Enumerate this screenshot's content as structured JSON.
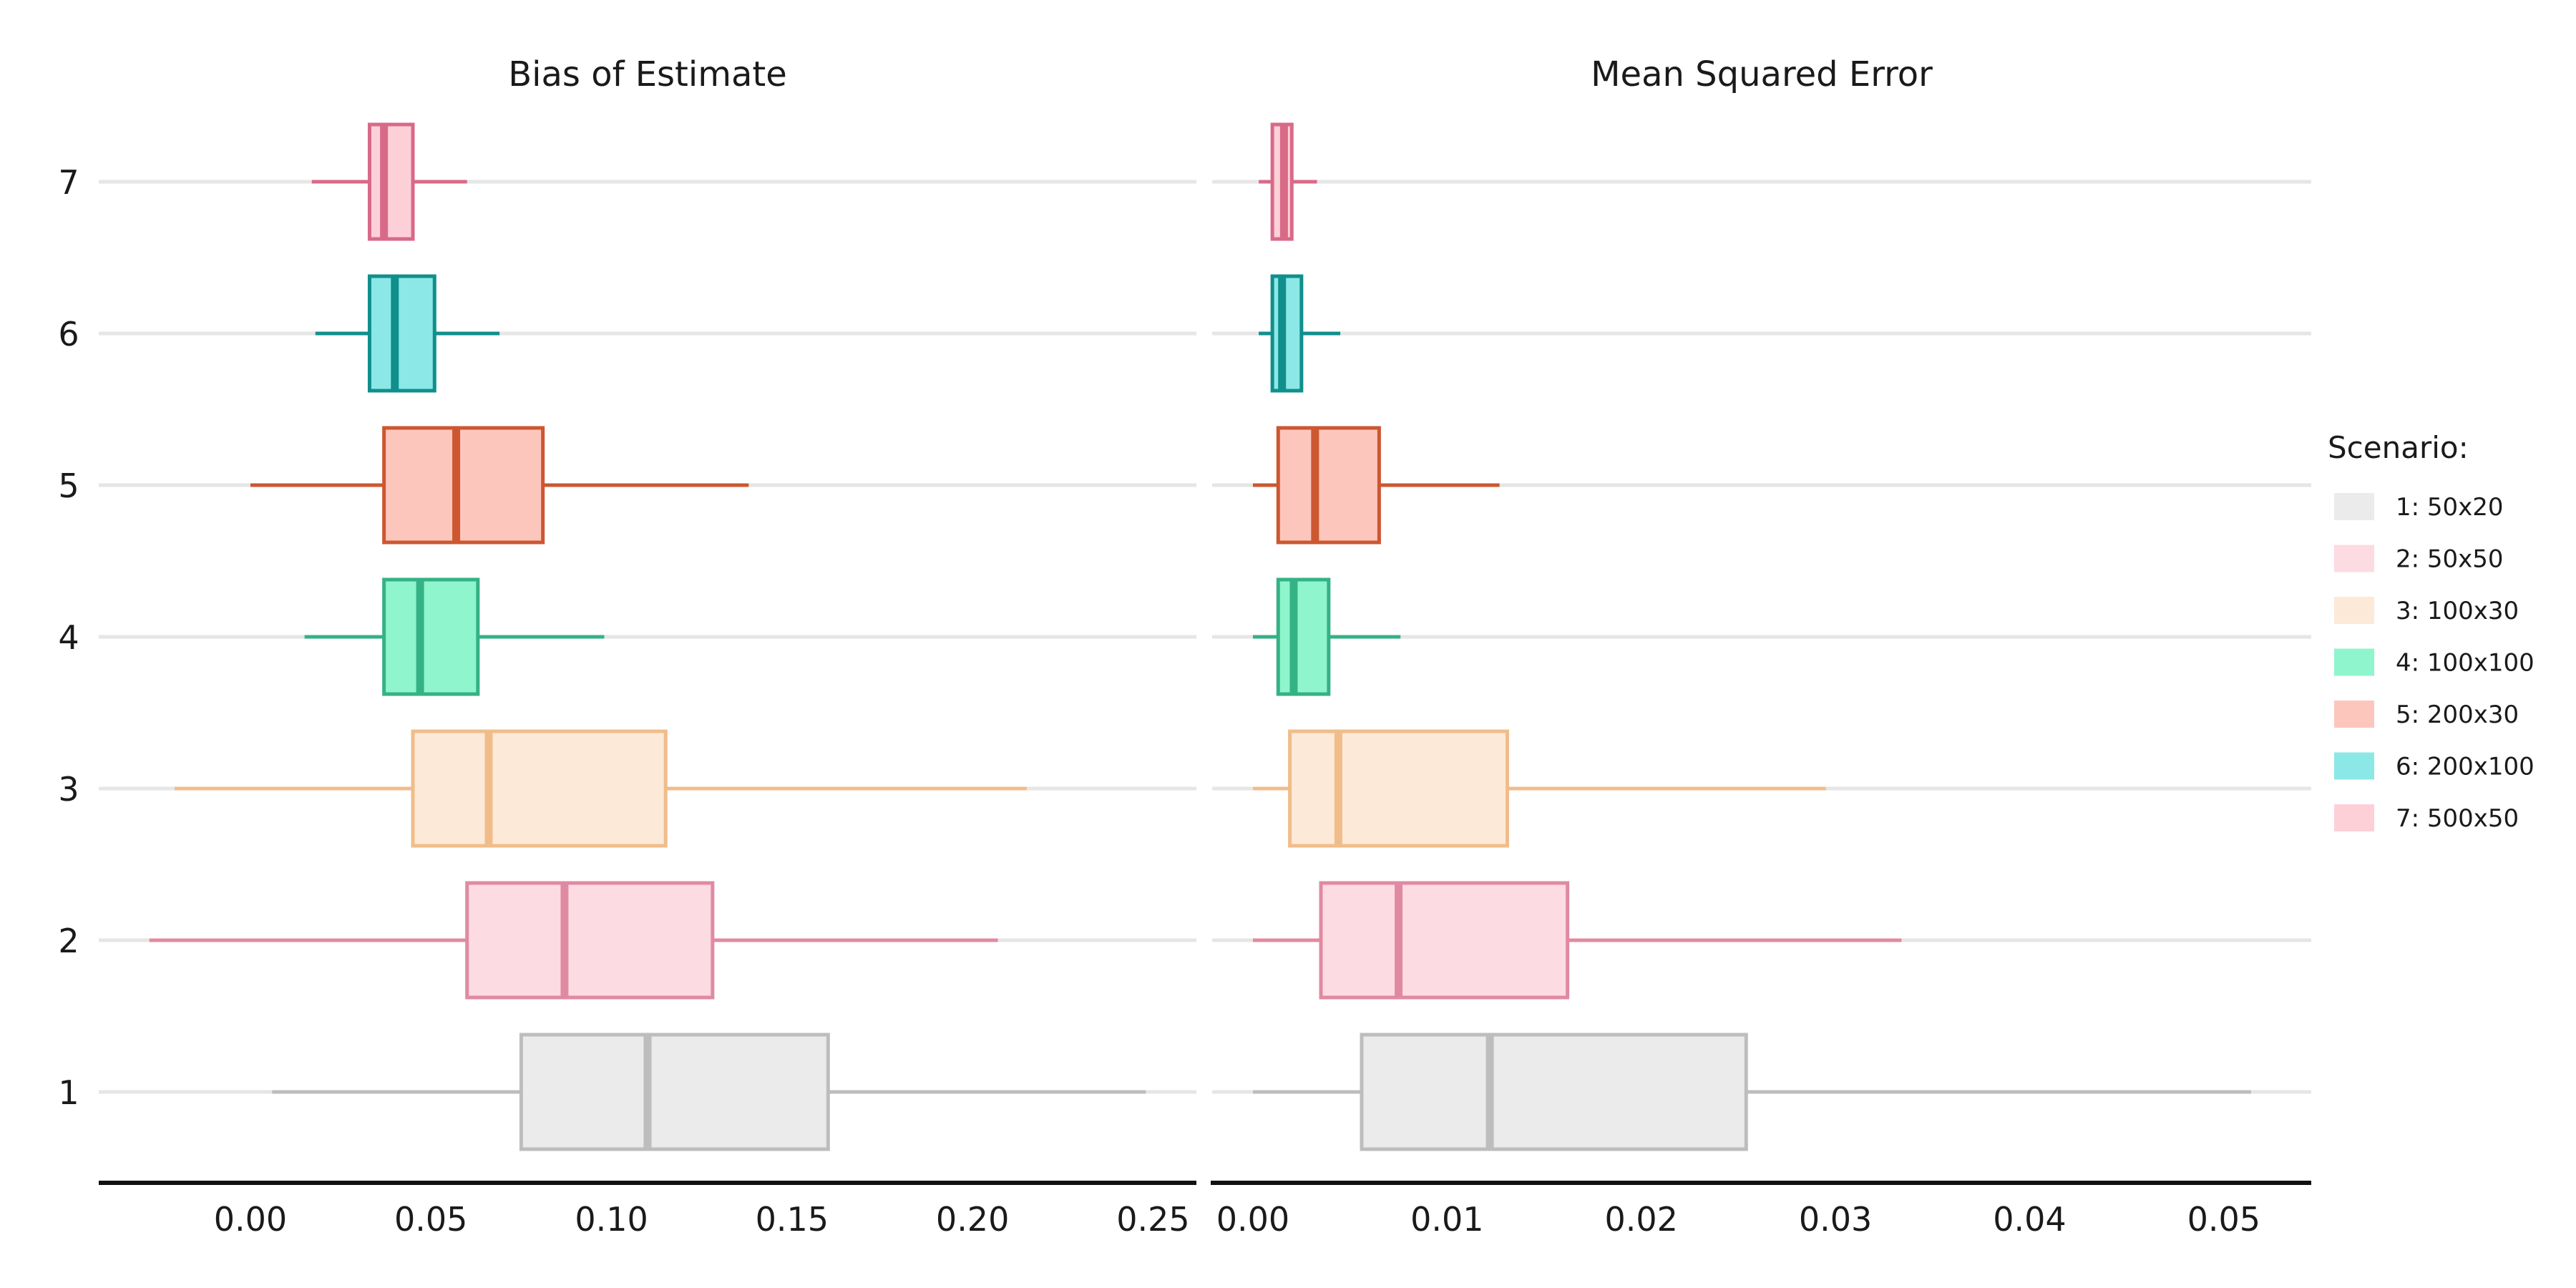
{
  "chart_data": [
    {
      "type": "boxplot",
      "orientation": "horizontal",
      "title": "Bias of Estimate",
      "xlabel": "",
      "ylabel": "",
      "xlim": [
        -0.042,
        0.262
      ],
      "x_ticks": [
        0.0,
        0.05,
        0.1,
        0.15,
        0.2,
        0.25
      ],
      "x_tick_labels": [
        "0.00",
        "0.05",
        "0.10",
        "0.15",
        "0.20",
        "0.25"
      ],
      "categories": [
        "1",
        "2",
        "3",
        "4",
        "5",
        "6",
        "7"
      ],
      "series": [
        {
          "scenario": "1",
          "name": "1: 50x20",
          "whisker_low": 0.006,
          "q1": 0.075,
          "median": 0.11,
          "q3": 0.16,
          "whisker_high": 0.248
        },
        {
          "scenario": "2",
          "name": "2: 50x50",
          "whisker_low": -0.028,
          "q1": 0.06,
          "median": 0.087,
          "q3": 0.128,
          "whisker_high": 0.207
        },
        {
          "scenario": "3",
          "name": "3: 100x30",
          "whisker_low": -0.021,
          "q1": 0.045,
          "median": 0.066,
          "q3": 0.115,
          "whisker_high": 0.215
        },
        {
          "scenario": "4",
          "name": "4: 100x100",
          "whisker_low": 0.015,
          "q1": 0.037,
          "median": 0.047,
          "q3": 0.063,
          "whisker_high": 0.098
        },
        {
          "scenario": "5",
          "name": "5: 200x30",
          "whisker_low": 0.0,
          "q1": 0.037,
          "median": 0.057,
          "q3": 0.081,
          "whisker_high": 0.138
        },
        {
          "scenario": "6",
          "name": "6: 200x100",
          "whisker_low": 0.018,
          "q1": 0.033,
          "median": 0.04,
          "q3": 0.051,
          "whisker_high": 0.069
        },
        {
          "scenario": "7",
          "name": "7: 500x50",
          "whisker_low": 0.017,
          "q1": 0.033,
          "median": 0.037,
          "q3": 0.045,
          "whisker_high": 0.06
        }
      ]
    },
    {
      "type": "boxplot",
      "orientation": "horizontal",
      "title": "Mean Squared Error",
      "xlabel": "",
      "ylabel": "",
      "xlim": [
        -0.0021,
        0.0545
      ],
      "x_ticks": [
        0.0,
        0.01,
        0.02,
        0.03,
        0.04,
        0.05
      ],
      "x_tick_labels": [
        "0.00",
        "0.01",
        "0.02",
        "0.03",
        "0.04",
        "0.05"
      ],
      "categories": [
        "1",
        "2",
        "3",
        "4",
        "5",
        "6",
        "7"
      ],
      "series": [
        {
          "scenario": "1",
          "name": "1: 50x20",
          "whisker_low": 0.0,
          "q1": 0.0056,
          "median": 0.0122,
          "q3": 0.0254,
          "whisker_high": 0.0514
        },
        {
          "scenario": "2",
          "name": "2: 50x50",
          "whisker_low": 0.0,
          "q1": 0.0035,
          "median": 0.0075,
          "q3": 0.0162,
          "whisker_high": 0.0334
        },
        {
          "scenario": "3",
          "name": "3: 100x30",
          "whisker_low": 0.0,
          "q1": 0.0019,
          "median": 0.0044,
          "q3": 0.0131,
          "whisker_high": 0.0295
        },
        {
          "scenario": "4",
          "name": "4: 100x100",
          "whisker_low": 0.0,
          "q1": 0.0013,
          "median": 0.0021,
          "q3": 0.0039,
          "whisker_high": 0.0076
        },
        {
          "scenario": "5",
          "name": "5: 200x30",
          "whisker_low": 0.0,
          "q1": 0.0013,
          "median": 0.0032,
          "q3": 0.0065,
          "whisker_high": 0.0127
        },
        {
          "scenario": "6",
          "name": "6: 200x100",
          "whisker_low": 0.0003,
          "q1": 0.001,
          "median": 0.0015,
          "q3": 0.0025,
          "whisker_high": 0.0045
        },
        {
          "scenario": "7",
          "name": "7: 500x50",
          "whisker_low": 0.0003,
          "q1": 0.001,
          "median": 0.0016,
          "q3": 0.002,
          "whisker_high": 0.0033
        }
      ]
    }
  ],
  "legend": {
    "title": "Scenario:",
    "position": "right",
    "items": [
      {
        "label": "1: 50x20",
        "fill": "#ebebeb",
        "stroke": "#bdbdbd"
      },
      {
        "label": "2: 50x50",
        "fill": "#fddbe2",
        "stroke": "#e08aa2"
      },
      {
        "label": "3: 100x30",
        "fill": "#fde9d8",
        "stroke": "#f0bd8a"
      },
      {
        "label": "4: 100x100",
        "fill": "#8ff5cc",
        "stroke": "#35b285"
      },
      {
        "label": "5: 200x30",
        "fill": "#fdc6bc",
        "stroke": "#cc5730"
      },
      {
        "label": "6: 200x100",
        "fill": "#8ce8e6",
        "stroke": "#108f8c"
      },
      {
        "label": "7: 500x50",
        "fill": "#fdd0d8",
        "stroke": "#d86a88"
      }
    ]
  },
  "colors": {
    "gridline": "#e6e6e6",
    "axis_line": "#111111"
  }
}
